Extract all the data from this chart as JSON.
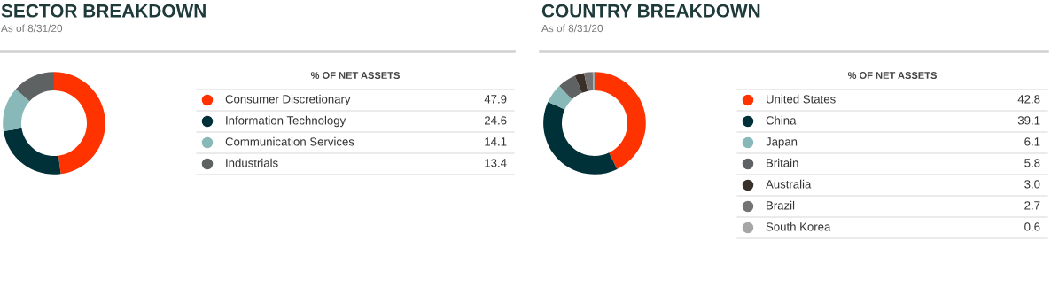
{
  "chart_data": [
    {
      "type": "donut",
      "title": "SECTOR BREAKDOWN",
      "subtitle": "As of 8/31/20",
      "legend_title": "% OF NET ASSETS",
      "legend": "right",
      "categories": [
        "Consumer Discretionary",
        "Information Technology",
        "Communication Services",
        "Industrials"
      ],
      "values": [
        47.9,
        24.6,
        14.1,
        13.4
      ],
      "value_labels": [
        "47.9",
        "24.6",
        "14.1",
        "13.4"
      ],
      "colors": [
        "#ff3300",
        "#003038",
        "#88b8b8",
        "#5f6262"
      ]
    },
    {
      "type": "donut",
      "title": "COUNTRY BREAKDOWN",
      "subtitle": "As of 8/31/20",
      "legend_title": "% OF NET ASSETS",
      "legend": "right",
      "categories": [
        "United States",
        "China",
        "Japan",
        "Britain",
        "Australia",
        "Brazil",
        "South Korea"
      ],
      "values": [
        42.8,
        39.1,
        6.1,
        5.8,
        3.0,
        2.7,
        0.6
      ],
      "value_labels": [
        "42.8",
        "39.1",
        "6.1",
        "5.8",
        "3.0",
        "2.7",
        "0.6"
      ],
      "colors": [
        "#ff3300",
        "#003038",
        "#88b8b8",
        "#5f6262",
        "#3a302a",
        "#737373",
        "#a6a6a6"
      ]
    }
  ]
}
